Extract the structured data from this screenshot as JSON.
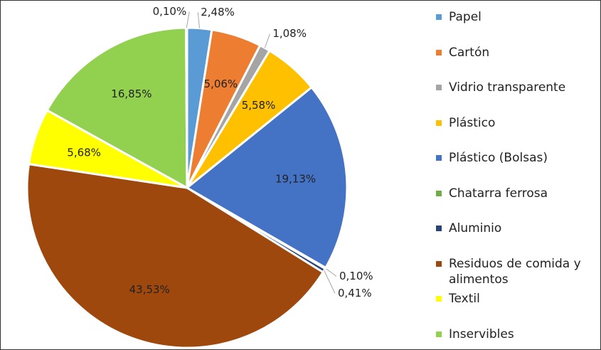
{
  "chart_data": {
    "type": "pie",
    "categories": [
      "Papel",
      "Cartón",
      "Vidrio transparente",
      "Plástico",
      "Plástico (Bolsas)",
      "Chatarra ferrosa",
      "Aluminio",
      "Residuos de comida y alimentos",
      "Textil",
      "Inservibles",
      null
    ],
    "values": [
      2.48,
      5.06,
      1.08,
      5.58,
      19.13,
      0.1,
      0.41,
      43.53,
      5.68,
      16.85,
      0.1
    ],
    "value_labels": [
      "2,48%",
      "5,06%",
      "1,08%",
      "5,58%",
      "19,13%",
      "0,10%",
      "0,41%",
      "43,53%",
      "5,68%",
      "16,85%",
      "0,10%"
    ],
    "colors": [
      "#5b9bd5",
      "#ed7d31",
      "#a5a5a5",
      "#ffc000",
      "#4472c4",
      "#70ad47",
      "#264478",
      "#9e480e",
      "#ffff00",
      "#92d050",
      "#bfbfbf"
    ],
    "legend": "right"
  }
}
